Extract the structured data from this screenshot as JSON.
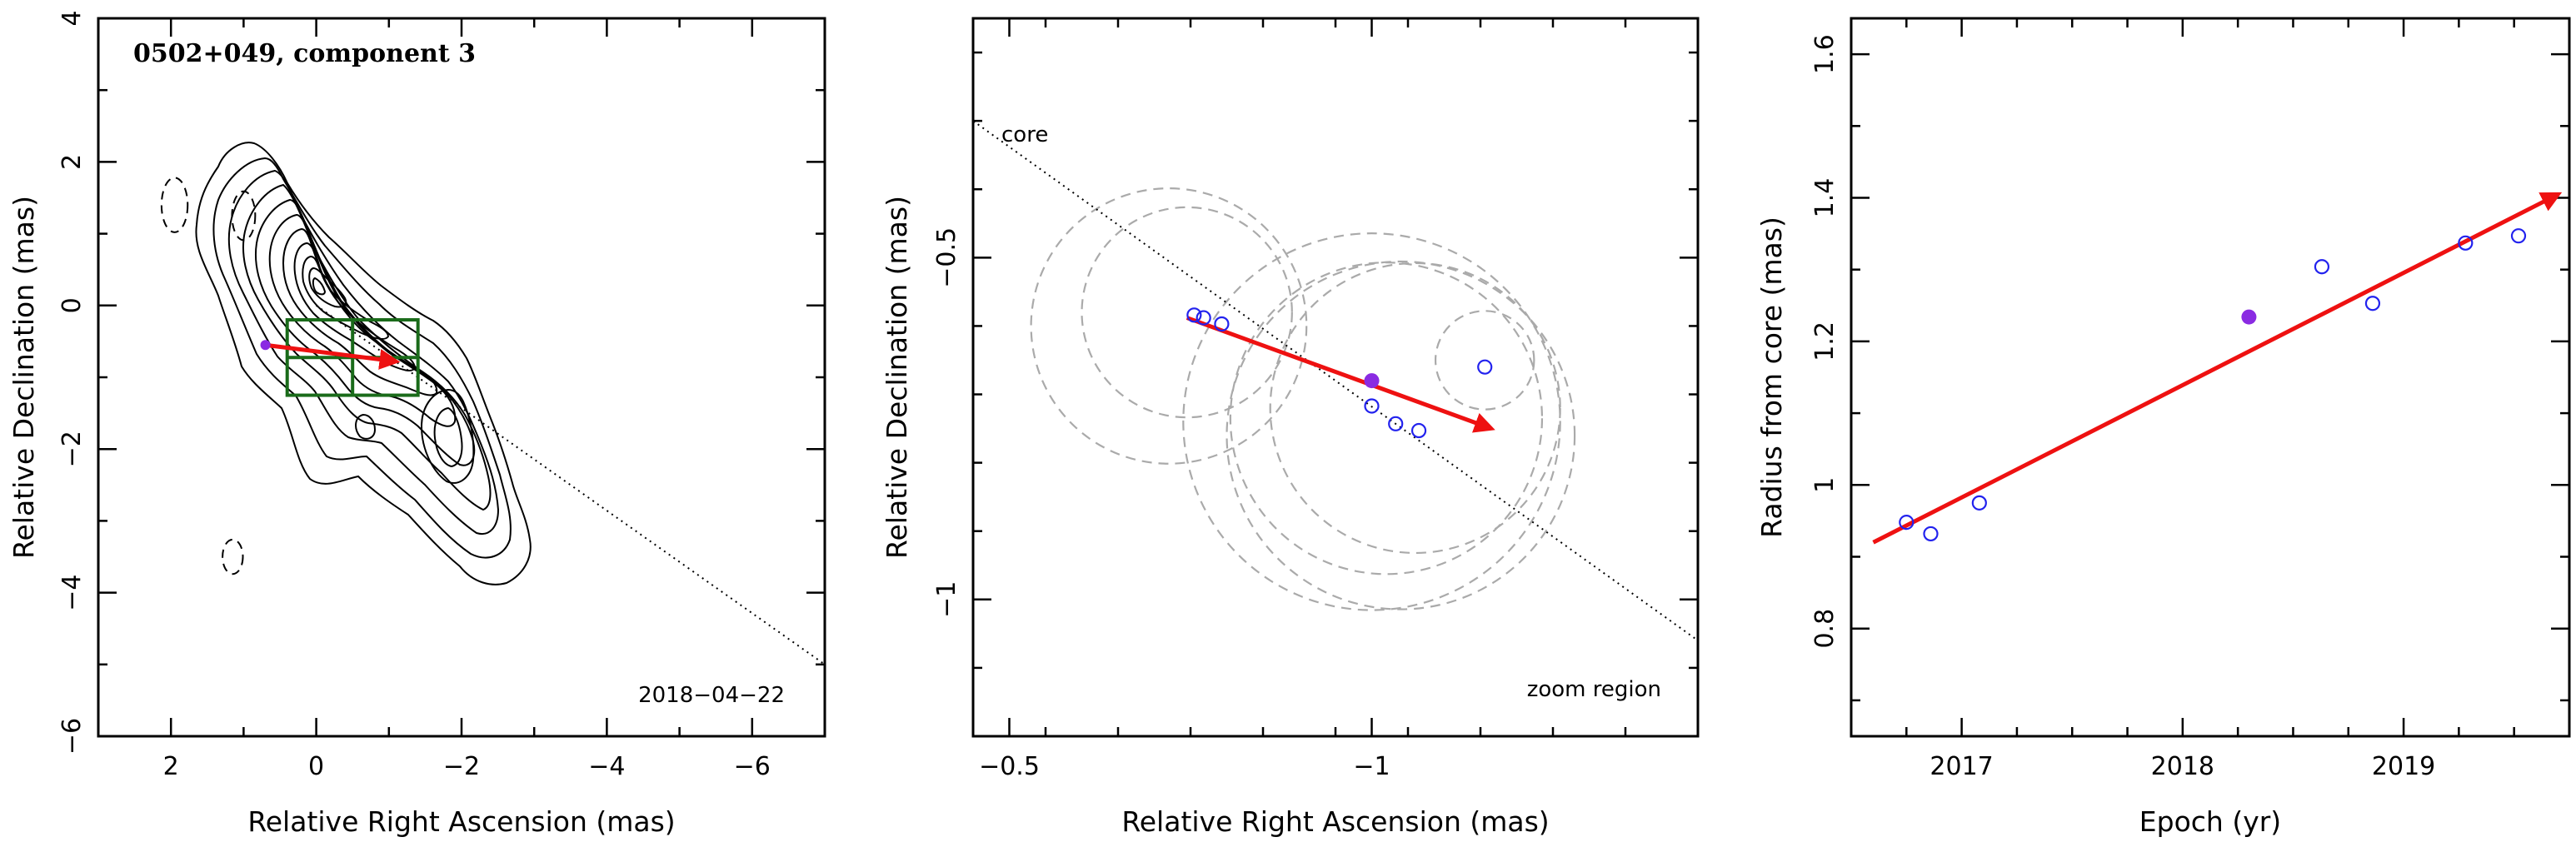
{
  "colors": {
    "arrow": "#ee1111",
    "open_point": "#2222ee",
    "filled_point": "#8a2be2",
    "zoom_box": "#1a6b1a",
    "component_circles": "#aaaaaa"
  },
  "chart_data": [
    {
      "type": "contour",
      "title": "0502+049, component 3",
      "date_label": "2018−04−22",
      "xlabel": "Relative Right Ascension (mas)",
      "ylabel": "Relative Declination (mas)",
      "xlim": [
        3,
        -7
      ],
      "ylim": [
        -6,
        4
      ],
      "x_ticks": [
        2,
        0,
        -2,
        -4,
        -6
      ],
      "y_ticks": [
        4,
        2,
        0,
        -2,
        -4,
        -6
      ],
      "x_tick_labels": [
        "2",
        "0",
        "−2",
        "−4",
        "−6"
      ],
      "y_tick_labels": [
        "4",
        "2",
        "0",
        "−2",
        "−4",
        "−6"
      ],
      "core_direction_line": {
        "from": [
          0,
          0
        ],
        "to": [
          -7,
          -5.0
        ]
      },
      "negative_contours": [
        {
          "x": 1.95,
          "y": 1.4,
          "rx": 0.18,
          "ry": 0.38
        },
        {
          "x": 1.0,
          "y": 1.25,
          "rx": 0.16,
          "ry": 0.34
        },
        {
          "x": 1.15,
          "y": -3.5,
          "rx": 0.14,
          "ry": 0.24
        }
      ],
      "zoom_region": {
        "x": [
          0.4,
          -1.4
        ],
        "y": [
          -1.25,
          -0.2
        ]
      },
      "inset_arrow": {
        "from": [
          0.7,
          -0.55
        ],
        "to": [
          -1.1,
          -0.78
        ]
      },
      "inset_filled_point": {
        "x": 0.7,
        "y": -0.55
      }
    },
    {
      "type": "scatter",
      "xlabel": "Relative Right Ascension (mas)",
      "ylabel": "Relative Declination (mas)",
      "xlim": [
        -0.45,
        -1.45
      ],
      "ylim": [
        -1.2,
        -0.15
      ],
      "x_ticks": [
        -0.5,
        -1
      ],
      "y_ticks": [
        -0.5,
        -1
      ],
      "x_tick_labels": [
        "−0.5",
        "−1"
      ],
      "y_tick_labels": [
        "−0.5",
        "−1"
      ],
      "annotations": {
        "core": "core",
        "zoom": "zoom region"
      },
      "core_direction_line": {
        "from": [
          -0.45,
          -0.3
        ],
        "to": [
          -1.45,
          -1.06
        ]
      },
      "points": [
        {
          "x": -0.755,
          "y": -0.584
        },
        {
          "x": -0.768,
          "y": -0.588
        },
        {
          "x": -0.793,
          "y": -0.597
        },
        {
          "x": -1.0,
          "y": -0.717
        },
        {
          "x": -1.033,
          "y": -0.743
        },
        {
          "x": -1.065,
          "y": -0.753
        },
        {
          "x": -1.156,
          "y": -0.66
        }
      ],
      "filled_point": {
        "x": -1.0,
        "y": -0.68
      },
      "component_circles": [
        {
          "x": -0.72,
          "y": -0.6,
          "r": 0.19
        },
        {
          "x": -0.745,
          "y": -0.58,
          "r": 0.145
        },
        {
          "x": -1.0,
          "y": -0.74,
          "r": 0.26
        },
        {
          "x": -1.02,
          "y": -0.735,
          "r": 0.215
        },
        {
          "x": -1.04,
          "y": -0.76,
          "r": 0.24
        },
        {
          "x": -1.06,
          "y": -0.72,
          "r": 0.2
        },
        {
          "x": -1.156,
          "y": -0.65,
          "r": 0.068
        }
      ],
      "arrow": {
        "from": [
          -0.745,
          -0.588
        ],
        "to": [
          -1.165,
          -0.75
        ]
      }
    },
    {
      "type": "scatter",
      "xlabel": "Epoch (yr)",
      "ylabel": "Radius from core (mas)",
      "xlim": [
        2016.5,
        2019.75
      ],
      "ylim": [
        0.65,
        1.65
      ],
      "x_ticks": [
        2017,
        2018,
        2019
      ],
      "y_ticks": [
        0.8,
        1,
        1.2,
        1.4,
        1.6
      ],
      "x_tick_labels": [
        "2017",
        "2018",
        "2019"
      ],
      "y_tick_labels": [
        "0.8",
        "1",
        "1.2",
        "1.4",
        "1.6"
      ],
      "points": [
        {
          "x": 2016.75,
          "y": 0.948
        },
        {
          "x": 2016.86,
          "y": 0.932
        },
        {
          "x": 2017.08,
          "y": 0.975
        },
        {
          "x": 2018.63,
          "y": 1.304
        },
        {
          "x": 2018.86,
          "y": 1.253
        },
        {
          "x": 2019.28,
          "y": 1.337
        },
        {
          "x": 2019.52,
          "y": 1.347
        }
      ],
      "filled_point": {
        "x": 2018.3,
        "y": 1.234
      },
      "fit_arrow": {
        "from": [
          2016.6,
          0.92
        ],
        "to": [
          2019.7,
          1.405
        ]
      }
    }
  ]
}
